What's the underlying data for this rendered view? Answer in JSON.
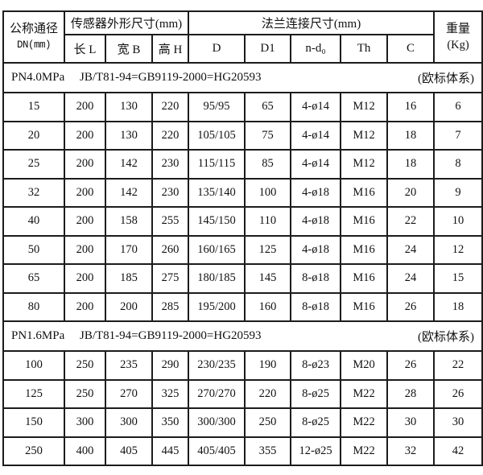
{
  "table": {
    "header": {
      "col1_line1": "公称通径",
      "col1_line2": "DN(mm)",
      "group_sensor": "传感器外形尺寸(mm)",
      "group_flange": "法兰连接尺寸(mm)",
      "weight_line1": "重量",
      "weight_line2": "(Kg)",
      "sub_cols": [
        "长 L",
        "宽 B",
        "高 H",
        "D",
        "D1",
        "n-d₀",
        "Th",
        "C"
      ]
    },
    "sections": [
      {
        "pressure": "PN4.0MPa",
        "standard": "JB/T81-94=GB9119-2000=HG20593",
        "note": "(欧标体系)",
        "rows": [
          [
            "15",
            "200",
            "130",
            "220",
            "95/95",
            "65",
            "4-ø14",
            "M12",
            "16",
            "6"
          ],
          [
            "20",
            "200",
            "130",
            "220",
            "105/105",
            "75",
            "4-ø14",
            "M12",
            "18",
            "7"
          ],
          [
            "25",
            "200",
            "142",
            "230",
            "115/115",
            "85",
            "4-ø14",
            "M12",
            "18",
            "8"
          ],
          [
            "32",
            "200",
            "142",
            "230",
            "135/140",
            "100",
            "4-ø18",
            "M16",
            "20",
            "9"
          ],
          [
            "40",
            "200",
            "158",
            "255",
            "145/150",
            "110",
            "4-ø18",
            "M16",
            "22",
            "10"
          ],
          [
            "50",
            "200",
            "170",
            "260",
            "160/165",
            "125",
            "4-ø18",
            "M16",
            "24",
            "12"
          ],
          [
            "65",
            "200",
            "185",
            "275",
            "180/185",
            "145",
            "8-ø18",
            "M16",
            "24",
            "15"
          ],
          [
            "80",
            "200",
            "200",
            "285",
            "195/200",
            "160",
            "8-ø18",
            "M16",
            "26",
            "18"
          ]
        ]
      },
      {
        "pressure": "PN1.6MPa",
        "standard": "JB/T81-94=GB9119-2000=HG20593",
        "note": "(欧标体系)",
        "rows": [
          [
            "100",
            "250",
            "235",
            "290",
            "230/235",
            "190",
            "8-ø23",
            "M20",
            "26",
            "22"
          ],
          [
            "125",
            "250",
            "270",
            "325",
            "270/270",
            "220",
            "8-ø25",
            "M22",
            "28",
            "26"
          ],
          [
            "150",
            "300",
            "300",
            "350",
            "300/300",
            "250",
            "8-ø25",
            "M22",
            "30",
            "30"
          ],
          [
            "250",
            "400",
            "405",
            "445",
            "405/405",
            "355",
            "12-ø25",
            "M22",
            "32",
            "42"
          ]
        ]
      }
    ],
    "colors": {
      "border": "#1c1c1c",
      "text": "#111111",
      "background": "#ffffff"
    }
  }
}
